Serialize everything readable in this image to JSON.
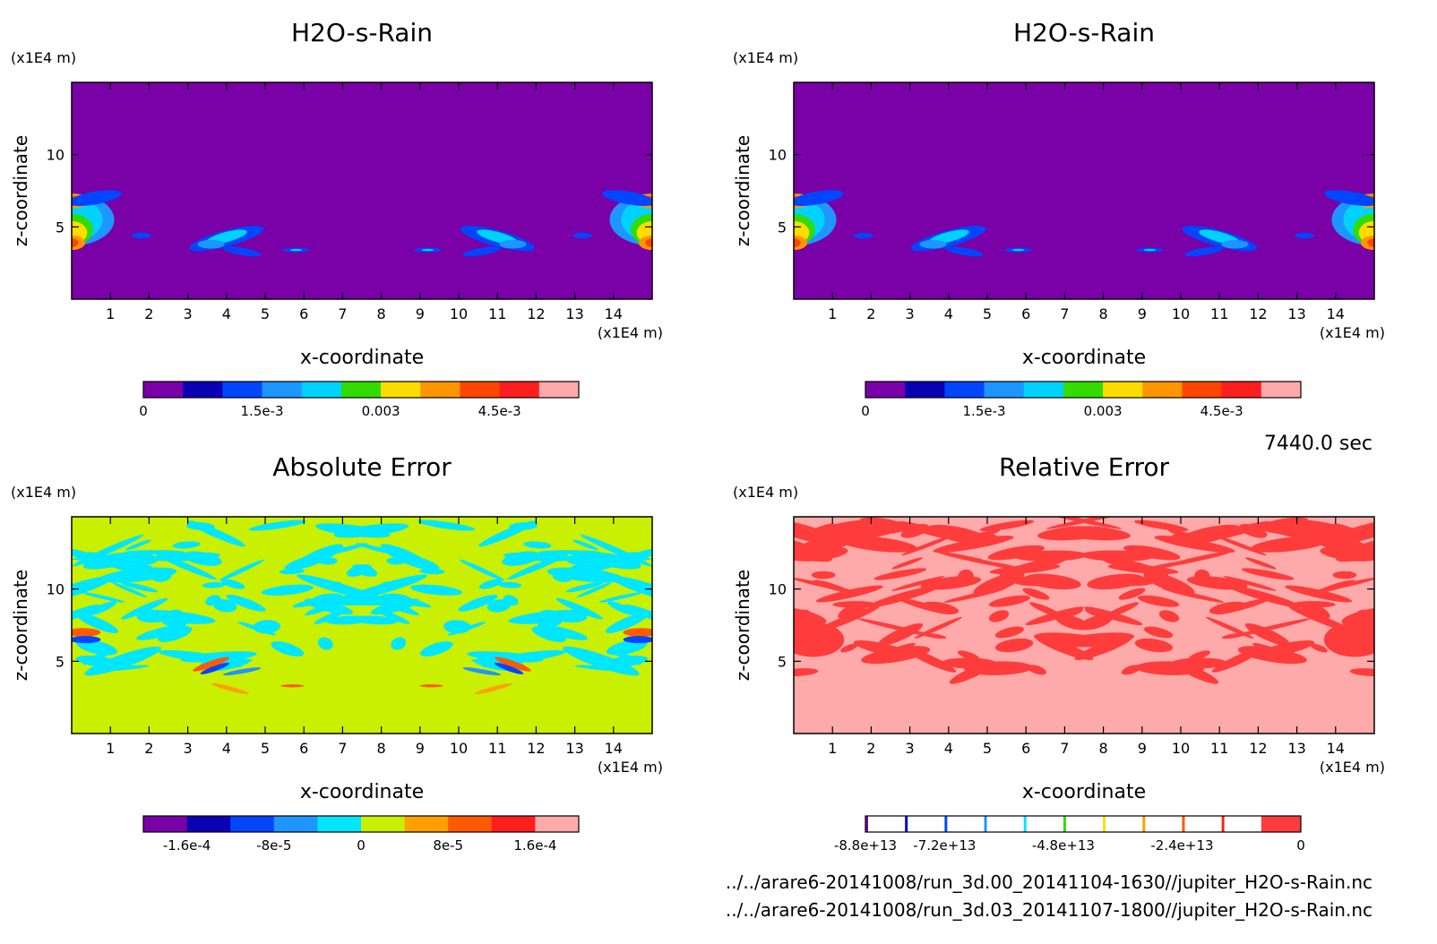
{
  "time_label": "7440.0 sec",
  "files": [
    "../../arare6-20141008/run_3d.00_20141104-1630//jupiter_H2O-s-Rain.nc",
    "../../arare6-20141008/run_3d.03_20141107-1800//jupiter_H2O-s-Rain.nc"
  ],
  "chart_data": [
    {
      "type": "heatmap",
      "title": "H2O-s-Rain",
      "xlabel": "x-coordinate",
      "ylabel": "z-coordinate",
      "x_unit": "(x1E4 m)",
      "y_unit": "(x1E4 m)",
      "xlim": [
        0,
        15
      ],
      "ylim": [
        0,
        15
      ],
      "xticks": [
        1,
        2,
        3,
        4,
        5,
        6,
        7,
        8,
        9,
        10,
        11,
        12,
        13,
        14
      ],
      "yticks": [
        5,
        10
      ],
      "background": "#7a00a8",
      "colorbar": {
        "colors": [
          "#7a00a8",
          "#0a00b4",
          "#0046ff",
          "#1e96ff",
          "#00d2ff",
          "#32dc00",
          "#ffdc00",
          "#ff9600",
          "#ff4600",
          "#ff1e1e",
          "#ffaaaa"
        ],
        "tick_labels": [
          "0",
          "1.5e-3",
          "0.003",
          "4.5e-3"
        ],
        "tick_values": [
          0,
          0.0015,
          0.003,
          0.0045
        ],
        "range": [
          0,
          0.0055
        ]
      }
    },
    {
      "type": "heatmap",
      "title": "H2O-s-Rain",
      "xlabel": "x-coordinate",
      "ylabel": "z-coordinate",
      "x_unit": "(x1E4 m)",
      "y_unit": "(x1E4 m)",
      "xlim": [
        0,
        15
      ],
      "ylim": [
        0,
        15
      ],
      "xticks": [
        1,
        2,
        3,
        4,
        5,
        6,
        7,
        8,
        9,
        10,
        11,
        12,
        13,
        14
      ],
      "yticks": [
        5,
        10
      ],
      "background": "#7a00a8",
      "colorbar": {
        "colors": [
          "#7a00a8",
          "#0a00b4",
          "#0046ff",
          "#1e96ff",
          "#00d2ff",
          "#32dc00",
          "#ffdc00",
          "#ff9600",
          "#ff4600",
          "#ff1e1e",
          "#ffaaaa"
        ],
        "tick_labels": [
          "0",
          "1.5e-3",
          "0.003",
          "4.5e-3"
        ],
        "tick_values": [
          0,
          0.0015,
          0.003,
          0.0045
        ],
        "range": [
          0,
          0.0055
        ]
      }
    },
    {
      "type": "heatmap",
      "title": "Absolute Error",
      "xlabel": "x-coordinate",
      "ylabel": "z-coordinate",
      "x_unit": "(x1E4 m)",
      "y_unit": "(x1E4 m)",
      "xlim": [
        0,
        15
      ],
      "ylim": [
        0,
        15
      ],
      "xticks": [
        1,
        2,
        3,
        4,
        5,
        6,
        7,
        8,
        9,
        10,
        11,
        12,
        13,
        14
      ],
      "yticks": [
        5,
        10
      ],
      "background": "#c8f000",
      "colorbar": {
        "colors": [
          "#7a00a8",
          "#0a00b4",
          "#0046ff",
          "#1e96ff",
          "#00e6ff",
          "#c8f000",
          "#ffa000",
          "#ff5a00",
          "#ff1e1e",
          "#ffaaaa"
        ],
        "tick_labels": [
          "-1.6e-4",
          "-8e-5",
          "0",
          "8e-5",
          "1.6e-4"
        ],
        "tick_values": [
          -0.00016,
          -8e-05,
          0,
          8e-05,
          0.00016
        ],
        "range": [
          -0.0002,
          0.0002
        ]
      }
    },
    {
      "type": "heatmap",
      "title": "Relative Error",
      "xlabel": "x-coordinate",
      "ylabel": "z-coordinate",
      "x_unit": "(x1E4 m)",
      "y_unit": "(x1E4 m)",
      "xlim": [
        0,
        15
      ],
      "ylim": [
        0,
        15
      ],
      "xticks": [
        1,
        2,
        3,
        4,
        5,
        6,
        7,
        8,
        9,
        10,
        11,
        12,
        13,
        14
      ],
      "yticks": [
        5,
        10
      ],
      "background": "#ffaaaa",
      "colorbar": {
        "colors": [
          "#7a00a8",
          "#0a00b4",
          "#0046ff",
          "#1e96ff",
          "#00e6ff",
          "#32dc00",
          "#ffdc00",
          "#ffa000",
          "#ff5a00",
          "#ff1e1e",
          "#ff3c3c"
        ],
        "tick_labels": [
          "-8.8e+13",
          "-7.2e+13",
          "-4.8e+13",
          "-2.4e+13",
          "0"
        ],
        "tick_values": [
          -88000000000000.0,
          -72000000000000.0,
          -48000000000000.0,
          -24000000000000.0,
          0
        ],
        "range": [
          -88000000000000.0,
          0
        ]
      }
    }
  ]
}
